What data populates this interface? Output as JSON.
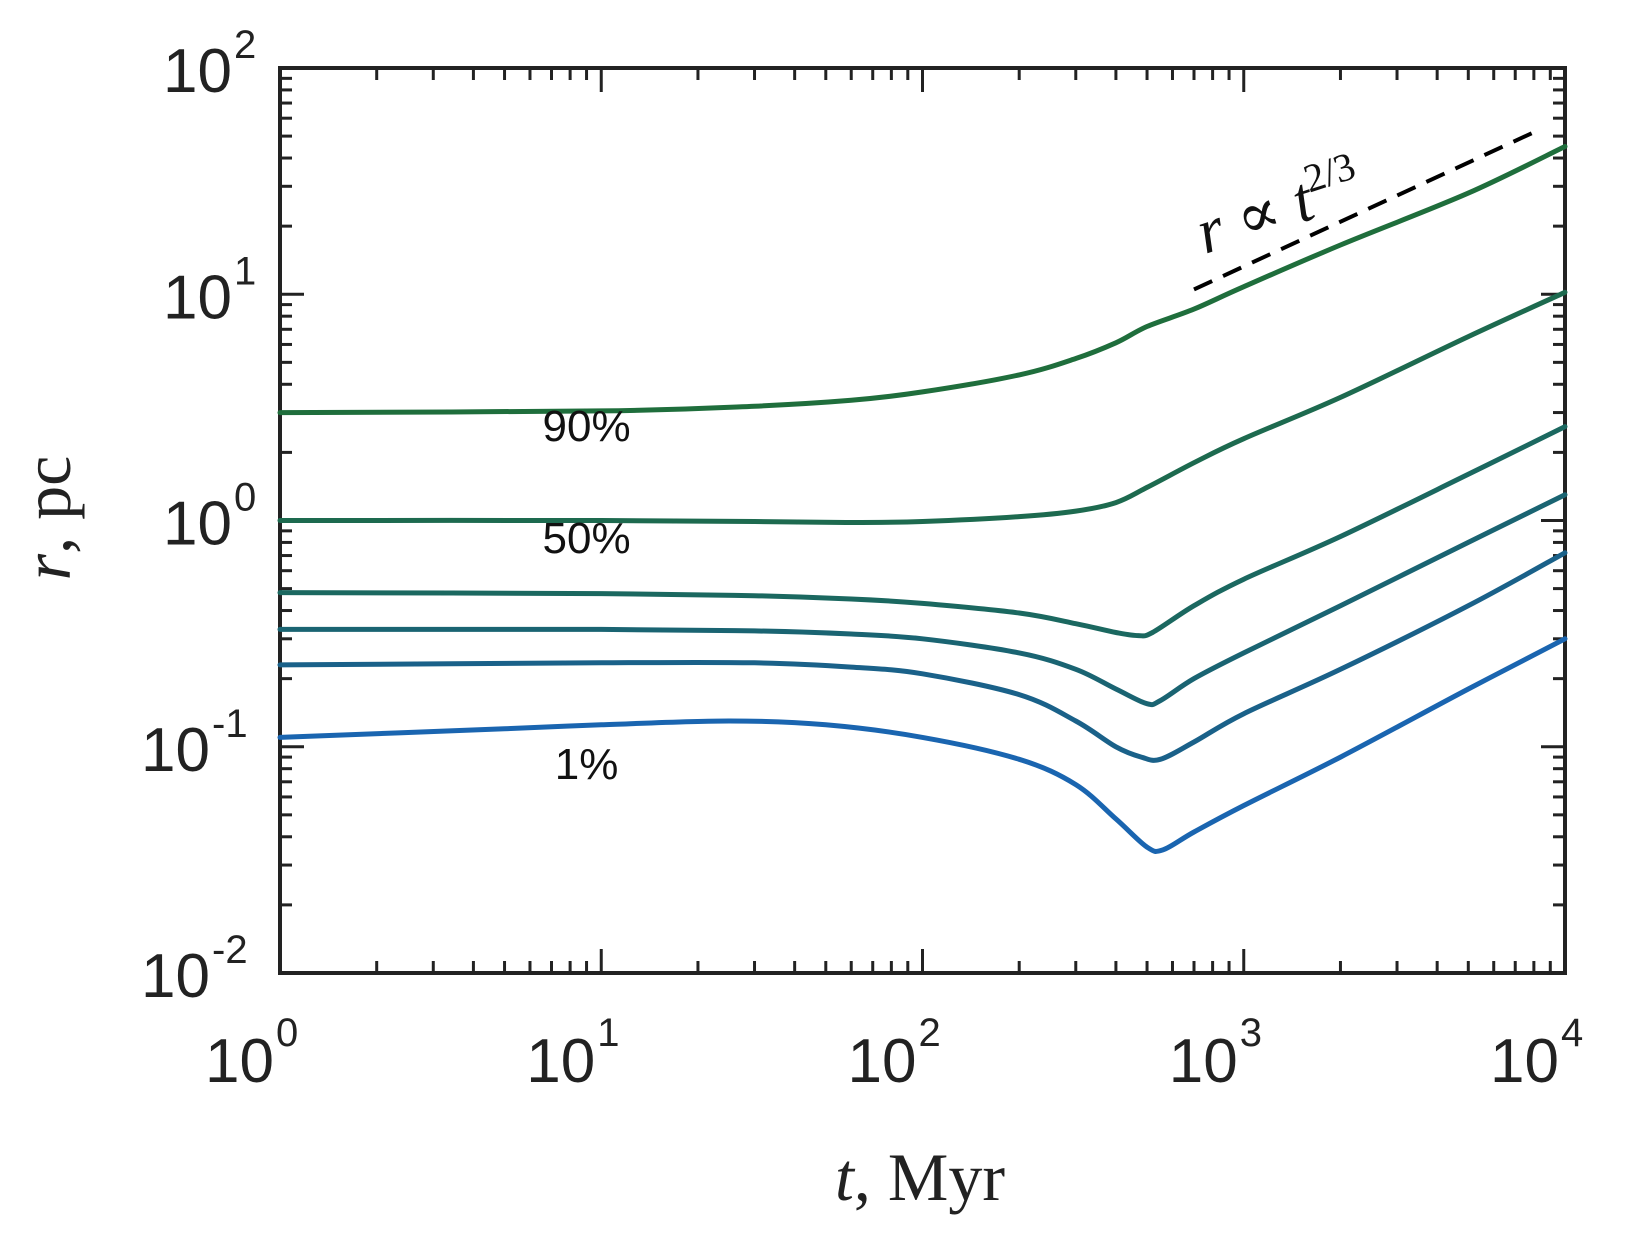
{
  "chart_data": {
    "type": "line",
    "xscale": "log",
    "yscale": "log",
    "xlim": [
      1,
      10000
    ],
    "ylim": [
      0.01,
      100
    ],
    "xlabel": {
      "var": "t",
      "unit": ", Myr"
    },
    "ylabel": {
      "var": "r",
      "unit": ", pc"
    },
    "xticks": [
      {
        "value": 1,
        "base": "10",
        "exp": "0"
      },
      {
        "value": 10,
        "base": "10",
        "exp": "1"
      },
      {
        "value": 100,
        "base": "10",
        "exp": "2"
      },
      {
        "value": 1000,
        "base": "10",
        "exp": "3"
      },
      {
        "value": 10000,
        "base": "10",
        "exp": "4"
      }
    ],
    "yticks": [
      {
        "value": 0.01,
        "base": "10",
        "exp": "-2"
      },
      {
        "value": 0.1,
        "base": "10",
        "exp": "-1"
      },
      {
        "value": 1,
        "base": "10",
        "exp": "0"
      },
      {
        "value": 10,
        "base": "10",
        "exp": "1"
      },
      {
        "value": 100,
        "base": "10",
        "exp": "2"
      }
    ],
    "grid": false,
    "series": [
      {
        "name": "90%",
        "color": "#1f6e3c",
        "x": [
          1,
          10,
          30,
          60,
          100,
          200,
          300,
          400,
          500,
          700,
          1000,
          2000,
          5000,
          10000
        ],
        "y": [
          3.0,
          3.05,
          3.2,
          3.4,
          3.7,
          4.4,
          5.2,
          6.1,
          7.2,
          8.6,
          10.8,
          16.5,
          28.0,
          45.0
        ]
      },
      {
        "name": "50%",
        "color": "#1d6a4f",
        "x": [
          1,
          10,
          30,
          60,
          100,
          200,
          300,
          400,
          500,
          700,
          1000,
          2000,
          5000,
          10000
        ],
        "y": [
          1.0,
          1.0,
          0.99,
          0.98,
          0.99,
          1.04,
          1.1,
          1.2,
          1.4,
          1.8,
          2.3,
          3.5,
          6.5,
          10.2
        ]
      },
      {
        "name": "",
        "color": "#1b6860",
        "x": [
          1,
          10,
          30,
          60,
          100,
          200,
          300,
          400,
          470,
          520,
          700,
          1000,
          2000,
          5000,
          10000
        ],
        "y": [
          0.48,
          0.475,
          0.465,
          0.45,
          0.43,
          0.39,
          0.35,
          0.32,
          0.31,
          0.32,
          0.42,
          0.55,
          0.85,
          1.6,
          2.6
        ]
      },
      {
        "name": "",
        "color": "#1a6472",
        "x": [
          1,
          10,
          30,
          60,
          100,
          200,
          300,
          400,
          500,
          550,
          700,
          1000,
          2000,
          5000,
          10000
        ],
        "y": [
          0.33,
          0.33,
          0.325,
          0.315,
          0.3,
          0.26,
          0.22,
          0.18,
          0.155,
          0.16,
          0.2,
          0.26,
          0.42,
          0.8,
          1.3
        ]
      },
      {
        "name": "",
        "color": "#1a6189",
        "x": [
          1,
          10,
          30,
          60,
          100,
          200,
          300,
          400,
          480,
          550,
          700,
          1000,
          2000,
          5000,
          10000
        ],
        "y": [
          0.23,
          0.235,
          0.235,
          0.225,
          0.21,
          0.17,
          0.13,
          0.1,
          0.09,
          0.088,
          0.105,
          0.14,
          0.22,
          0.42,
          0.72
        ]
      },
      {
        "name": "1%",
        "color": "#1a65b0",
        "x": [
          1,
          5,
          10,
          25,
          50,
          100,
          200,
          300,
          400,
          500,
          560,
          700,
          1000,
          2000,
          5000,
          10000
        ],
        "y": [
          0.11,
          0.12,
          0.125,
          0.13,
          0.125,
          0.11,
          0.088,
          0.068,
          0.048,
          0.036,
          0.035,
          0.042,
          0.055,
          0.09,
          0.18,
          0.3
        ]
      }
    ],
    "annotations": [
      {
        "text_var": "r",
        "text_op": " ∝ ",
        "text_base": "t",
        "text_exp": "2/3"
      }
    ],
    "reference_line": {
      "style": "dashed",
      "color": "#000000",
      "x": [
        700,
        8000
      ],
      "y": [
        10.5,
        52
      ]
    }
  }
}
